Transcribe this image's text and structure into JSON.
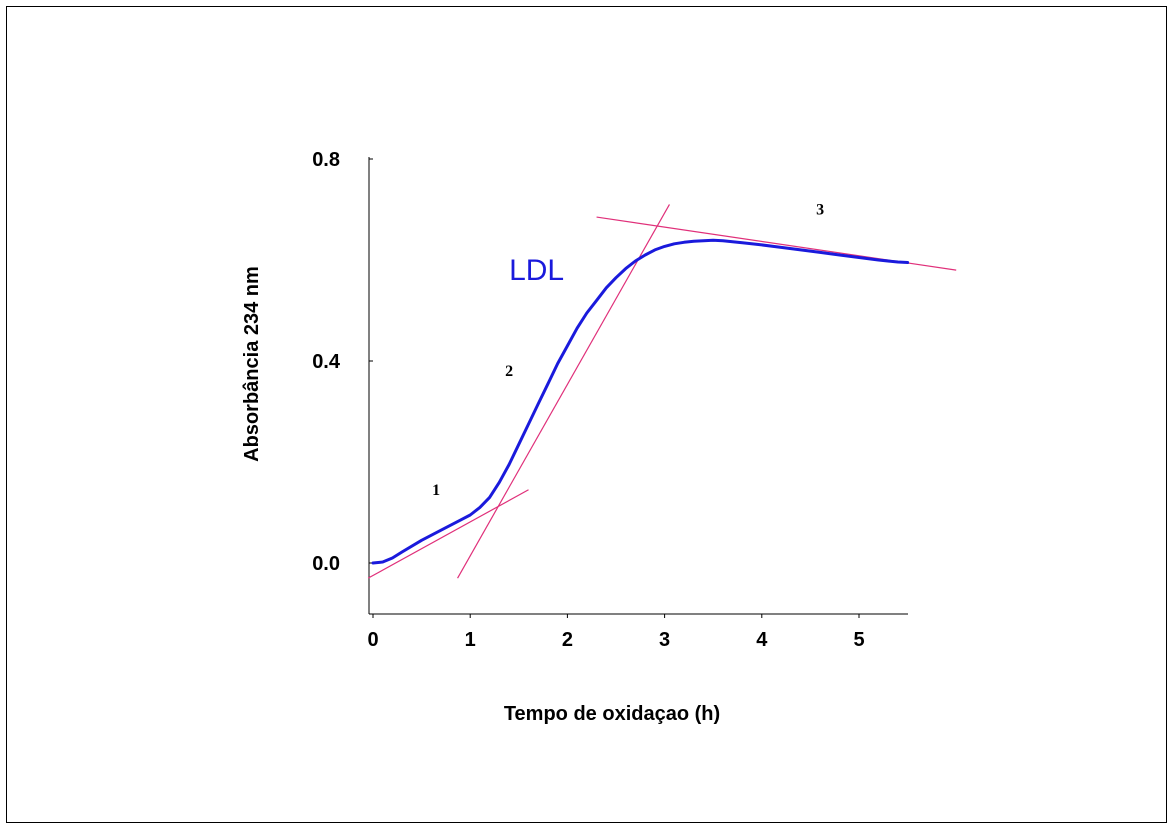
{
  "colors": {
    "curve": "#1a1adc",
    "tangent": "#e0307a",
    "axis": "#000000"
  },
  "chart_data": {
    "type": "line",
    "title": "",
    "xlabel": "Tempo de oxidaçao (h)",
    "ylabel": "Absorbância 234 nm",
    "xlim": [
      -0.05,
      5.5
    ],
    "ylim": [
      -0.1,
      0.82
    ],
    "x_ticks": [
      {
        "value": 0,
        "label": "0"
      },
      {
        "value": 1,
        "label": "1"
      },
      {
        "value": 2,
        "label": "2"
      },
      {
        "value": 3,
        "label": "3"
      },
      {
        "value": 4,
        "label": "4"
      },
      {
        "value": 5,
        "label": "5"
      }
    ],
    "y_ticks": [
      {
        "value": 0.0,
        "label": "0.0"
      },
      {
        "value": 0.4,
        "label": "0.4"
      },
      {
        "value": 0.8,
        "label": "0.8"
      }
    ],
    "series": [
      {
        "name": "LDL",
        "x": [
          0,
          0.1,
          0.2,
          0.3,
          0.5,
          0.7,
          0.9,
          1.0,
          1.1,
          1.2,
          1.3,
          1.4,
          1.5,
          1.6,
          1.7,
          1.8,
          1.9,
          2.0,
          2.1,
          2.2,
          2.3,
          2.4,
          2.5,
          2.6,
          2.7,
          2.8,
          2.9,
          3.0,
          3.1,
          3.2,
          3.3,
          3.4,
          3.5,
          3.6,
          3.7,
          3.8,
          4.0,
          4.2,
          4.4,
          4.6,
          4.8,
          5.0,
          5.2,
          5.4,
          5.5
        ],
        "y": [
          0.0,
          0.002,
          0.01,
          0.022,
          0.045,
          0.065,
          0.085,
          0.095,
          0.11,
          0.13,
          0.16,
          0.195,
          0.235,
          0.275,
          0.315,
          0.355,
          0.395,
          0.43,
          0.465,
          0.495,
          0.52,
          0.545,
          0.565,
          0.583,
          0.598,
          0.61,
          0.62,
          0.627,
          0.632,
          0.635,
          0.637,
          0.638,
          0.639,
          0.638,
          0.636,
          0.634,
          0.63,
          0.625,
          0.62,
          0.615,
          0.61,
          0.605,
          0.6,
          0.596,
          0.595
        ]
      }
    ],
    "tangents": [
      {
        "x": [
          -0.05,
          1.6
        ],
        "y": [
          -0.03,
          0.145
        ]
      },
      {
        "x": [
          0.87,
          3.05
        ],
        "y": [
          -0.03,
          0.71
        ]
      },
      {
        "x": [
          2.3,
          6.0
        ],
        "y": [
          0.685,
          0.58
        ]
      }
    ],
    "annotations": [
      {
        "text": "LDL",
        "x": 1.4,
        "y": 0.56
      },
      {
        "text": "1",
        "x": 0.65,
        "y": 0.135
      },
      {
        "text": "2",
        "x": 1.4,
        "y": 0.37
      },
      {
        "text": "3",
        "x": 4.6,
        "y": 0.69
      }
    ]
  }
}
